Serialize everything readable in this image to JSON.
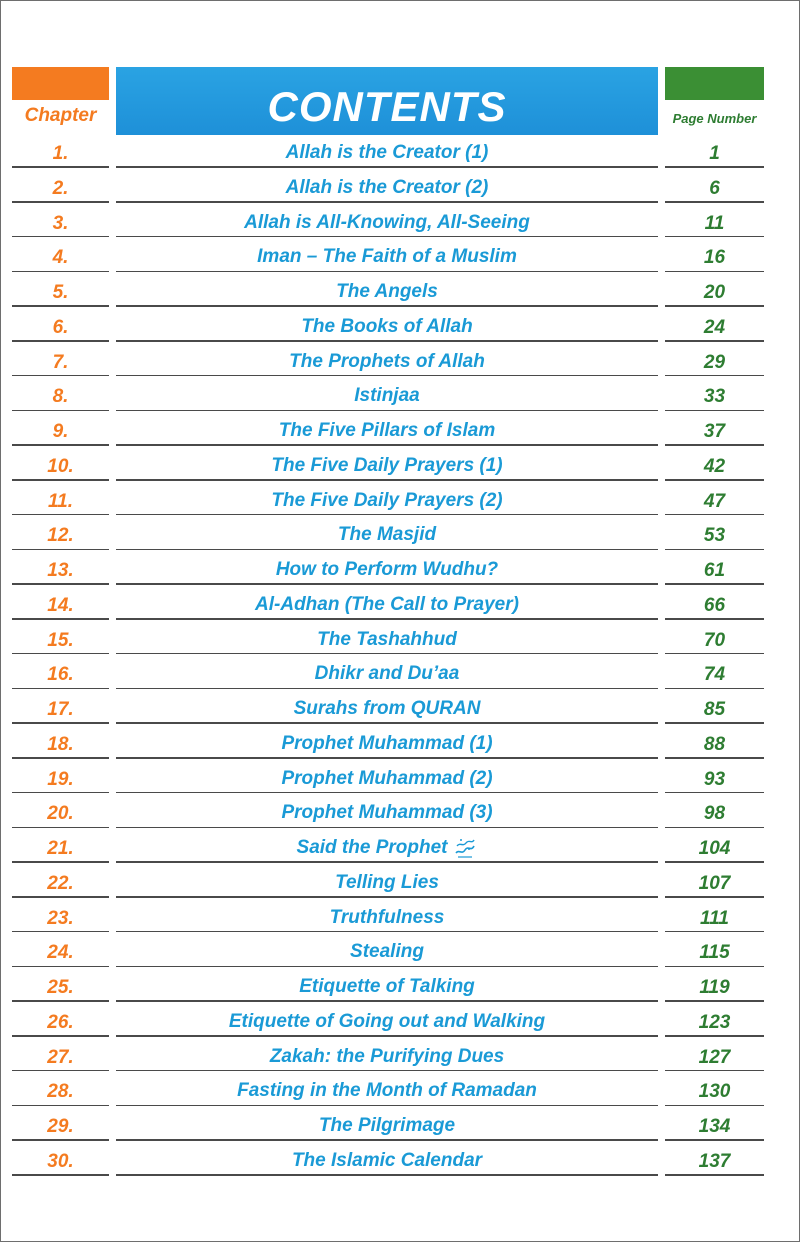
{
  "header": {
    "chapter_label": "Chapter",
    "title": "CONTENTS",
    "page_label": "Page Number"
  },
  "colors": {
    "chapter": "#f47b20",
    "title": "#1a9ad6",
    "page": "#2e7d32"
  },
  "entries": [
    {
      "num": "1.",
      "title": "Allah is the Creator (1)",
      "page": "1"
    },
    {
      "num": "2.",
      "title": "Allah is the Creator (2)",
      "page": "6"
    },
    {
      "num": "3.",
      "title": "Allah is All-Knowing, All-Seeing",
      "page": "11"
    },
    {
      "num": "4.",
      "title": "Iman – The Faith of a Muslim",
      "page": "16"
    },
    {
      "num": "5.",
      "title": "The Angels",
      "page": "20"
    },
    {
      "num": "6.",
      "title": "The Books of Allah",
      "page": "24"
    },
    {
      "num": "7.",
      "title": "The Prophets of Allah",
      "page": "29"
    },
    {
      "num": "8.",
      "title": "Istinjaa",
      "page": "33"
    },
    {
      "num": "9.",
      "title": "The Five Pillars of Islam",
      "page": "37"
    },
    {
      "num": "10.",
      "title": "The Five Daily Prayers (1)",
      "page": "42"
    },
    {
      "num": "11.",
      "title": "The Five Daily Prayers (2)",
      "page": "47"
    },
    {
      "num": "12.",
      "title": "The Masjid",
      "page": "53"
    },
    {
      "num": "13.",
      "title": "How to Perform Wudhu?",
      "page": "61"
    },
    {
      "num": "14.",
      "title": "Al-Adhan (The Call to Prayer)",
      "page": "66"
    },
    {
      "num": "15.",
      "title": "The Tashahhud",
      "page": "70"
    },
    {
      "num": "16.",
      "title": "Dhikr and Du’aa",
      "page": "74"
    },
    {
      "num": "17.",
      "title": "Surahs from QURAN",
      "page": "85"
    },
    {
      "num": "18.",
      "title": "Prophet Muhammad (1)",
      "page": "88"
    },
    {
      "num": "19.",
      "title": "Prophet Muhammad (2)",
      "page": "93"
    },
    {
      "num": "20.",
      "title": "Prophet Muhammad (3)",
      "page": "98"
    },
    {
      "num": "21.",
      "title": "Said the Prophet",
      "page": "104",
      "icon": "pbuh-calligraphy-icon"
    },
    {
      "num": "22.",
      "title": "Telling Lies",
      "page": "107"
    },
    {
      "num": "23.",
      "title": "Truthfulness",
      "page": "111"
    },
    {
      "num": "24.",
      "title": "Stealing",
      "page": "115"
    },
    {
      "num": "25.",
      "title": "Etiquette of Talking",
      "page": "119"
    },
    {
      "num": "26.",
      "title": "Etiquette of Going out and Walking",
      "page": "123"
    },
    {
      "num": "27.",
      "title": "Zakah: the Purifying Dues",
      "page": "127"
    },
    {
      "num": "28.",
      "title": "Fasting in the Month of Ramadan",
      "page": "130"
    },
    {
      "num": "29.",
      "title": "The Pilgrimage",
      "page": "134"
    },
    {
      "num": "30.",
      "title": "The Islamic Calendar",
      "page": "137"
    }
  ]
}
